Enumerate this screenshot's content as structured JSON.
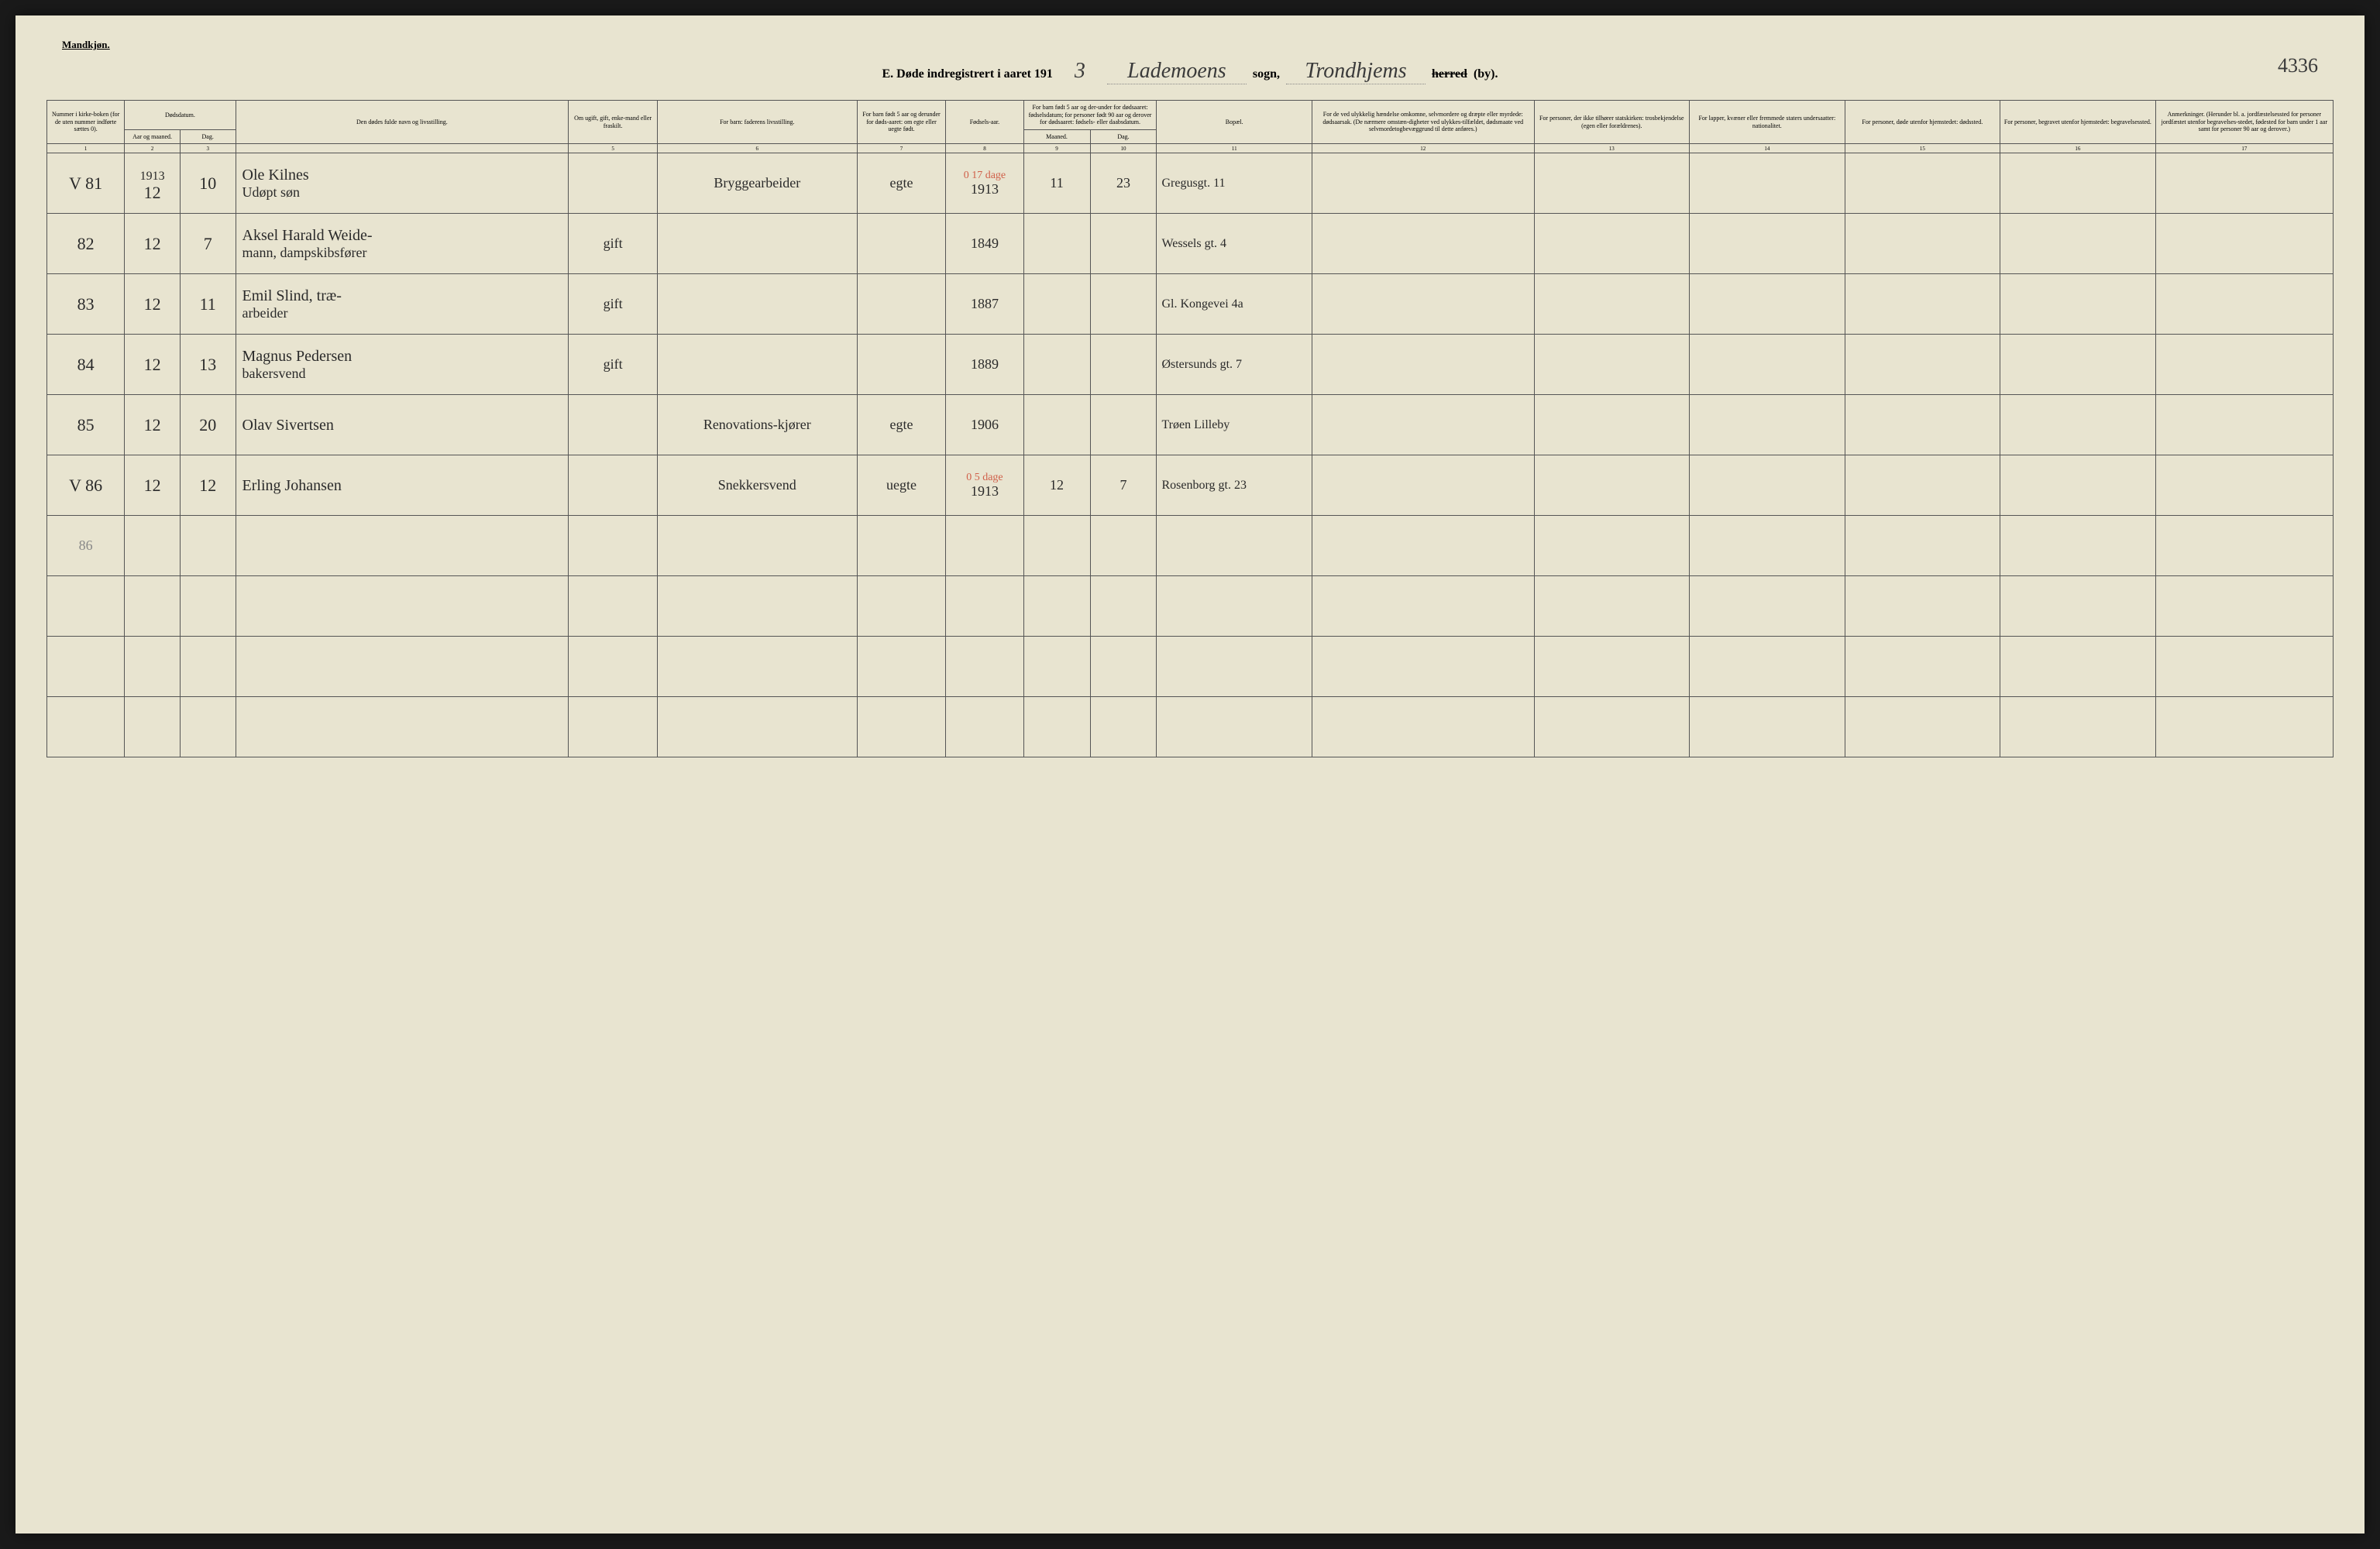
{
  "header": {
    "gender": "Mandkjøn.",
    "title_prefix": "E.  Døde indregistrert i aaret 191",
    "year_suffix": "3",
    "sogn_hand": "Lademoens",
    "sogn_label": "sogn,",
    "herred_hand": "Trondhjems",
    "herred_struck": "herred",
    "by_label": "(by).",
    "page_number": "4336"
  },
  "columns": {
    "c1": "Nummer i kirke-boken (for de uten nummer indførte sættes 0).",
    "c2": "Dødsdatum.",
    "c2a": "Aar og maaned.",
    "c2b": "Dag.",
    "c4": "Den dødes fulde navn og livsstilling.",
    "c5": "Om ugift, gift, enke-mand eller fraskilt.",
    "c6": "For barn: faderens livsstilling.",
    "c7": "For barn født 5 aar og derunder for døds-aaret: om egte eller uegte født.",
    "c8": "Fødsels-aar.",
    "c9_10": "For barn født 5 aar og der-under for dødsaaret: fødselsdatum; for personer født 90 aar og derover for dødsaaret: fødsels- eller daabsdatum.",
    "c9": "Maaned.",
    "c10": "Dag.",
    "c11": "Bopæl.",
    "c12": "For de ved ulykkelig hændelse omkomne, selvmordere og dræpte eller myrdede: dødsaarsak. (De nærmere omstæn-digheter ved ulykkes-tilfældet, dødsmaate ved selvmordetogbevæggrund til dette anføres.)",
    "c13": "For personer, der ikke tilhører statskirken: trosbekjendelse (egen eller forældrenes).",
    "c14": "For lapper, kvæner eller fremmede staters undersaatter: nationalitet.",
    "c15": "For personer, døde utenfor hjemstedet: dødssted.",
    "c16": "For personer, begravet utenfor hjemstedet: begravelsessted.",
    "c17": "Anmerkninger. (Herunder bl. a. jordfæstelsessted for personer jordfæstet utenfor begravelses-stedet, fødested for barn under 1 aar samt for personer 90 aar og derover.)"
  },
  "colnums": [
    "1",
    "2",
    "3",
    "",
    "5",
    "6",
    "7",
    "8",
    "9",
    "10",
    "11",
    "12",
    "13",
    "14",
    "15",
    "16",
    "17"
  ],
  "year_row": "1913",
  "rows": [
    {
      "margin": "V",
      "num": "81",
      "month": "12",
      "day": "10",
      "name_line1": "Ole Kilnes",
      "name_line2": "Udøpt søn",
      "civil": "",
      "father": "Bryggearbeider",
      "legit": "egte",
      "birth_year": "1913",
      "birth_month": "11",
      "birth_day": "23",
      "red_annot": "0   17 dage",
      "bopael": "Gregusgt. 11"
    },
    {
      "num": "82",
      "month": "12",
      "day": "7",
      "name_line1": "Aksel Harald Weide-",
      "name_line2": "mann, dampskibsfører",
      "civil": "gift",
      "birth_year": "1849",
      "bopael": "Wessels gt. 4"
    },
    {
      "num": "83",
      "month": "12",
      "day": "11",
      "name_line1": "Emil Slind, træ-",
      "name_line2": "arbeider",
      "civil": "gift",
      "birth_year": "1887",
      "bopael": "Gl. Kongevei 4a"
    },
    {
      "num": "84",
      "month": "12",
      "day": "13",
      "name_line1": "Magnus Pedersen",
      "name_line2": "bakersvend",
      "civil": "gift",
      "birth_year": "1889",
      "bopael": "Østersunds gt. 7"
    },
    {
      "num": "85",
      "month": "12",
      "day": "20",
      "name_line1": "Olav Sivertsen",
      "father": "Renovations-kjører",
      "legit": "egte",
      "birth_year": "1906",
      "bopael": "Trøen Lilleby"
    },
    {
      "margin": "V",
      "num": "86",
      "month": "12",
      "day": "12",
      "name_line1": "Erling Johansen",
      "father": "Snekkersvend",
      "legit": "uegte",
      "birth_year": "1913",
      "birth_month": "12",
      "birth_day": "7",
      "red_annot": "0   5 dage",
      "bopael": "Rosenborg gt. 23"
    }
  ],
  "footer_mark": "86",
  "colors": {
    "paper": "#e8e4d0",
    "ink": "#2a2a2a",
    "red": "#d0604a",
    "border": "#555555"
  }
}
